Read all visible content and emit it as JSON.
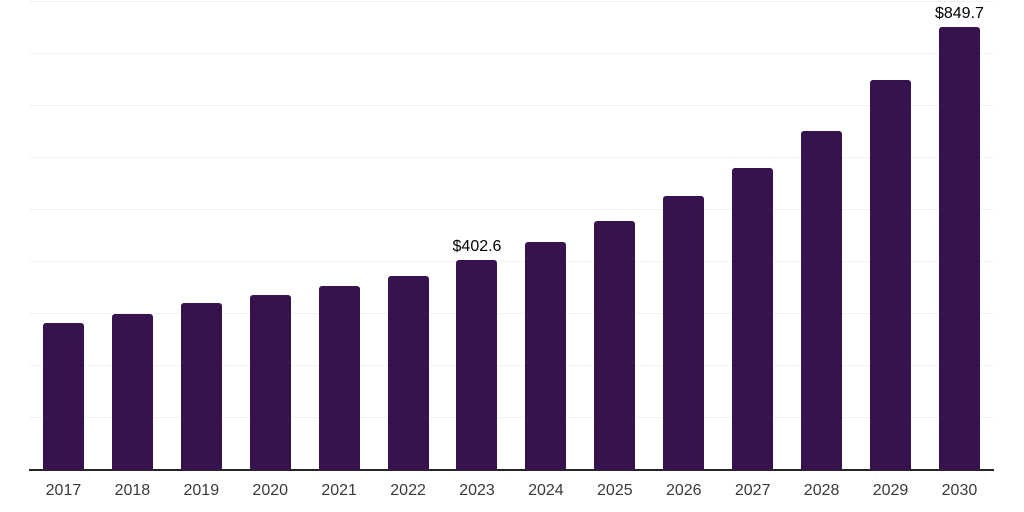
{
  "chart_data": {
    "type": "bar",
    "title": "",
    "xlabel": "",
    "ylabel": "",
    "categories": [
      "2017",
      "2018",
      "2019",
      "2020",
      "2021",
      "2022",
      "2023",
      "2024",
      "2025",
      "2026",
      "2027",
      "2028",
      "2029",
      "2030"
    ],
    "values": [
      281,
      298,
      320,
      336,
      352,
      372,
      402.6,
      437,
      478,
      525,
      580,
      650,
      748,
      849.7
    ],
    "data_labels": [
      "",
      "",
      "",
      "",
      "",
      "",
      "$402.6",
      "",
      "",
      "",
      "",
      "",
      "",
      "$849.7"
    ],
    "ylim": [
      0,
      900
    ],
    "gridline_step": 100,
    "grid": "horizontal",
    "legend_position": "none",
    "y_tick_labels_visible": false,
    "bar_color": "#36124e",
    "axis_line_color": "#262626",
    "gridline_color": "#f2f2f2",
    "tick_label_color": "#3a3a3a",
    "data_label_color": "#000000",
    "background_color": "#ffffff"
  }
}
